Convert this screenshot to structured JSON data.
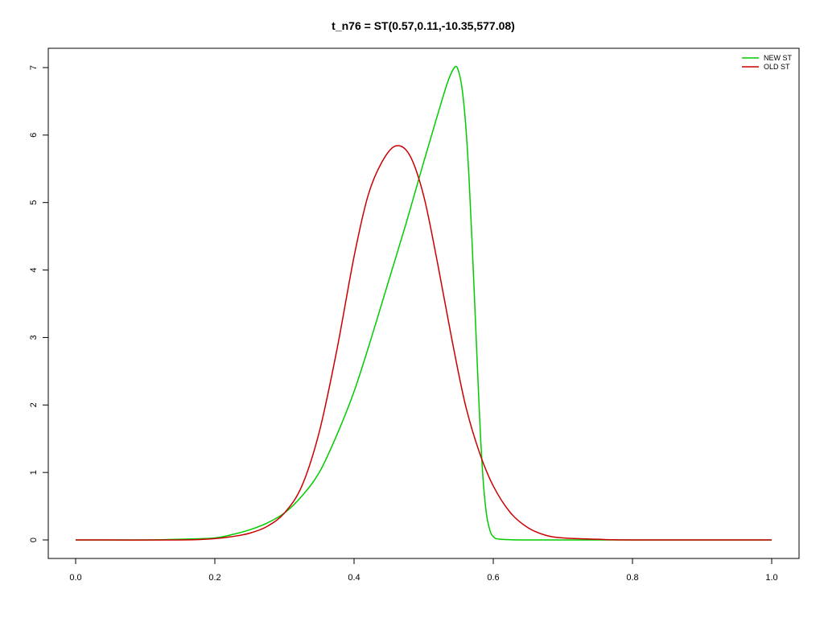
{
  "chart_data": {
    "type": "line",
    "title": "t_n76 = ST(0.57,0.11,-10.35,577.08)",
    "xlabel": "",
    "ylabel": "",
    "xlim": [
      0.0,
      1.0
    ],
    "ylim": [
      0,
      7
    ],
    "x_ticks": [
      "0.0",
      "0.2",
      "0.4",
      "0.6",
      "0.8",
      "1.0"
    ],
    "y_ticks": [
      "0",
      "1",
      "2",
      "3",
      "4",
      "5",
      "6",
      "7"
    ],
    "grid": false,
    "legend_position": "top-right",
    "series": [
      {
        "name": "NEW ST",
        "color": "#00cc00",
        "x": [
          0.0,
          0.1,
          0.15,
          0.2,
          0.225,
          0.25,
          0.275,
          0.3,
          0.325,
          0.35,
          0.375,
          0.4,
          0.425,
          0.45,
          0.475,
          0.5,
          0.52,
          0.535,
          0.545,
          0.55,
          0.555,
          0.56,
          0.565,
          0.57,
          0.575,
          0.58,
          0.585,
          0.59,
          0.595,
          0.6,
          0.61,
          0.65,
          0.7,
          0.8,
          1.0
        ],
        "y": [
          0,
          0.0,
          0.01,
          0.03,
          0.08,
          0.15,
          0.25,
          0.4,
          0.65,
          1.0,
          1.55,
          2.2,
          3.0,
          3.85,
          4.7,
          5.6,
          6.3,
          6.8,
          7.01,
          6.95,
          6.7,
          6.2,
          5.4,
          4.3,
          3.1,
          1.9,
          0.95,
          0.4,
          0.15,
          0.05,
          0.01,
          0.0,
          0.0,
          0.0,
          0.0
        ]
      },
      {
        "name": "OLD ST",
        "color": "#cc0000",
        "x": [
          0.0,
          0.15,
          0.2,
          0.225,
          0.25,
          0.275,
          0.3,
          0.325,
          0.35,
          0.375,
          0.4,
          0.42,
          0.44,
          0.46,
          0.48,
          0.5,
          0.52,
          0.54,
          0.56,
          0.58,
          0.6,
          0.625,
          0.65,
          0.675,
          0.7,
          0.75,
          0.8,
          1.0
        ],
        "y": [
          0,
          0.0,
          0.02,
          0.05,
          0.1,
          0.2,
          0.4,
          0.8,
          1.6,
          2.8,
          4.2,
          5.1,
          5.6,
          5.84,
          5.7,
          5.1,
          4.1,
          3.0,
          2.0,
          1.3,
          0.8,
          0.4,
          0.18,
          0.07,
          0.03,
          0.01,
          0.0,
          0.0
        ]
      }
    ]
  }
}
